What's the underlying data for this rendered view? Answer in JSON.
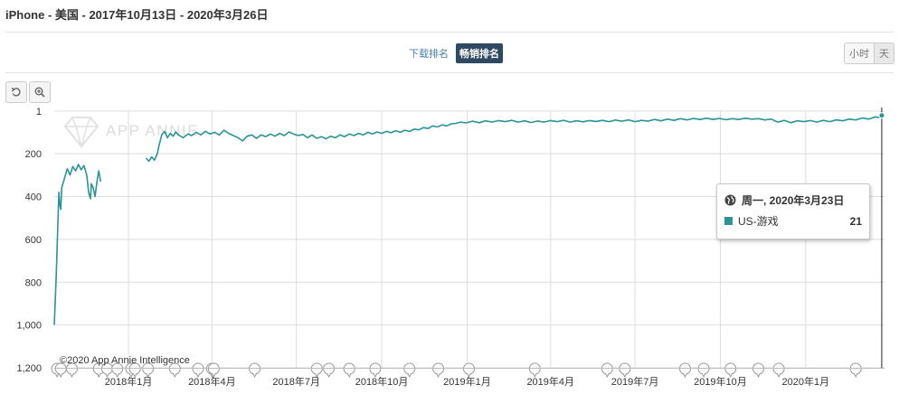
{
  "header": {
    "title": "iPhone - 美国 - 2017年10月13日 - 2020年3月26日"
  },
  "metric_tabs": [
    {
      "label": "下载排名",
      "active": false
    },
    {
      "label": "畅销排名",
      "active": true
    }
  ],
  "granularity": [
    {
      "label": "小时",
      "active": false
    },
    {
      "label": "天",
      "active": true
    }
  ],
  "tools": {
    "reset_icon": "undo-icon",
    "zoom_icon": "zoom-in-icon"
  },
  "watermark": "APP ANNIE",
  "copyright": "©2020 App Annie Intelligence",
  "colors": {
    "series": "#2a9496",
    "grid": "#dddddd",
    "axis_text": "#333333"
  },
  "tooltip": {
    "date": "周一, 2020年3月23日",
    "series": "US-游戏",
    "value": "21",
    "icon": "globe-icon"
  },
  "chart_data": {
    "type": "line",
    "title": "",
    "xlabel": "",
    "ylabel": "",
    "y_reversed": true,
    "ylim": [
      1200,
      1
    ],
    "yticks": [
      1,
      200,
      400,
      600,
      800,
      1000,
      1200
    ],
    "ytick_labels": [
      "1",
      "200",
      "400",
      "600",
      "800",
      "1,000",
      "1,200"
    ],
    "xlim": [
      "2017-10-13",
      "2020-03-26"
    ],
    "xticks": [
      "2018-01-01",
      "2018-04-01",
      "2018-07-01",
      "2018-10-01",
      "2019-01-01",
      "2019-04-01",
      "2019-07-01",
      "2019-10-01",
      "2020-01-01"
    ],
    "xtick_labels": [
      "2018年1月",
      "2018年4月",
      "2018年7月",
      "2018年10月",
      "2019年1月",
      "2019年4月",
      "2019年7月",
      "2019年10月",
      "2020年1月"
    ],
    "grid": true,
    "series": [
      {
        "name": "US-游戏",
        "segments": [
          [
            [
              "2017-10-13",
              1000
            ],
            [
              "2017-10-15",
              780
            ],
            [
              "2017-10-17",
              510
            ],
            [
              "2017-10-18",
              380
            ],
            [
              "2017-10-19",
              440
            ],
            [
              "2017-10-20",
              460
            ],
            [
              "2017-10-21",
              360
            ],
            [
              "2017-10-23",
              330
            ],
            [
              "2017-10-25",
              300
            ],
            [
              "2017-10-27",
              270
            ],
            [
              "2017-10-30",
              300
            ],
            [
              "2017-11-02",
              260
            ],
            [
              "2017-11-05",
              280
            ],
            [
              "2017-11-08",
              250
            ],
            [
              "2017-11-11",
              275
            ],
            [
              "2017-11-14",
              255
            ],
            [
              "2017-11-17",
              300
            ],
            [
              "2017-11-19",
              380
            ],
            [
              "2017-11-21",
              410
            ],
            [
              "2017-11-22",
              340
            ],
            [
              "2017-11-24",
              360
            ],
            [
              "2017-11-26",
              400
            ],
            [
              "2017-11-28",
              330
            ],
            [
              "2017-11-30",
              280
            ],
            [
              "2017-12-02",
              330
            ]
          ],
          [
            [
              "2018-01-20",
              220
            ],
            [
              "2018-01-23",
              235
            ],
            [
              "2018-01-26",
              215
            ],
            [
              "2018-01-29",
              230
            ],
            [
              "2018-02-01",
              200
            ],
            [
              "2018-02-03",
              160
            ],
            [
              "2018-02-06",
              110
            ],
            [
              "2018-02-09",
              95
            ],
            [
              "2018-02-12",
              125
            ],
            [
              "2018-02-15",
              105
            ],
            [
              "2018-02-18",
              118
            ],
            [
              "2018-02-21",
              98
            ],
            [
              "2018-02-24",
              112
            ],
            [
              "2018-03-01",
              125
            ],
            [
              "2018-03-06",
              108
            ],
            [
              "2018-03-10",
              115
            ],
            [
              "2018-03-15",
              100
            ],
            [
              "2018-03-20",
              112
            ],
            [
              "2018-03-25",
              95
            ],
            [
              "2018-03-30",
              108
            ],
            [
              "2018-04-04",
              100
            ],
            [
              "2018-04-09",
              112
            ],
            [
              "2018-04-14",
              90
            ],
            [
              "2018-04-19",
              105
            ],
            [
              "2018-04-24",
              115
            ],
            [
              "2018-04-29",
              125
            ],
            [
              "2018-05-04",
              140
            ],
            [
              "2018-05-09",
              118
            ],
            [
              "2018-05-14",
              112
            ],
            [
              "2018-05-19",
              128
            ],
            [
              "2018-05-24",
              112
            ],
            [
              "2018-05-29",
              120
            ],
            [
              "2018-06-03",
              108
            ],
            [
              "2018-06-08",
              118
            ],
            [
              "2018-06-13",
              105
            ],
            [
              "2018-06-18",
              115
            ],
            [
              "2018-06-23",
              98
            ],
            [
              "2018-06-28",
              108
            ],
            [
              "2018-07-03",
              115
            ],
            [
              "2018-07-08",
              110
            ],
            [
              "2018-07-13",
              125
            ],
            [
              "2018-07-18",
              112
            ],
            [
              "2018-07-23",
              128
            ],
            [
              "2018-07-28",
              120
            ],
            [
              "2018-08-02",
              130
            ],
            [
              "2018-08-07",
              118
            ],
            [
              "2018-08-12",
              125
            ],
            [
              "2018-08-17",
              112
            ],
            [
              "2018-08-22",
              120
            ],
            [
              "2018-08-27",
              108
            ],
            [
              "2018-09-01",
              115
            ],
            [
              "2018-09-06",
              105
            ],
            [
              "2018-09-11",
              112
            ],
            [
              "2018-09-16",
              100
            ],
            [
              "2018-09-21",
              108
            ],
            [
              "2018-09-26",
              98
            ],
            [
              "2018-10-01",
              105
            ],
            [
              "2018-10-06",
              95
            ],
            [
              "2018-10-11",
              102
            ],
            [
              "2018-10-16",
              92
            ],
            [
              "2018-10-21",
              100
            ],
            [
              "2018-10-26",
              90
            ],
            [
              "2018-10-31",
              96
            ],
            [
              "2018-11-05",
              85
            ],
            [
              "2018-11-10",
              88
            ],
            [
              "2018-11-15",
              78
            ],
            [
              "2018-11-20",
              82
            ],
            [
              "2018-11-25",
              70
            ],
            [
              "2018-11-30",
              75
            ],
            [
              "2018-12-05",
              65
            ],
            [
              "2018-12-10",
              70
            ],
            [
              "2018-12-15",
              60
            ],
            [
              "2018-12-20",
              58
            ],
            [
              "2018-12-25",
              52
            ],
            [
              "2018-12-31",
              56
            ],
            [
              "2019-01-07",
              48
            ],
            [
              "2019-01-14",
              55
            ],
            [
              "2019-01-21",
              46
            ],
            [
              "2019-01-28",
              52
            ],
            [
              "2019-02-04",
              45
            ],
            [
              "2019-02-11",
              50
            ],
            [
              "2019-02-18",
              44
            ],
            [
              "2019-02-25",
              52
            ],
            [
              "2019-03-04",
              46
            ],
            [
              "2019-03-11",
              54
            ],
            [
              "2019-03-18",
              47
            ],
            [
              "2019-03-25",
              52
            ],
            [
              "2019-04-01",
              45
            ],
            [
              "2019-04-08",
              50
            ],
            [
              "2019-04-15",
              44
            ],
            [
              "2019-04-22",
              52
            ],
            [
              "2019-04-29",
              46
            ],
            [
              "2019-05-06",
              51
            ],
            [
              "2019-05-13",
              45
            ],
            [
              "2019-05-20",
              49
            ],
            [
              "2019-05-27",
              44
            ],
            [
              "2019-06-03",
              50
            ],
            [
              "2019-06-10",
              43
            ],
            [
              "2019-06-17",
              48
            ],
            [
              "2019-06-24",
              42
            ],
            [
              "2019-07-01",
              50
            ],
            [
              "2019-07-08",
              44
            ],
            [
              "2019-07-15",
              48
            ],
            [
              "2019-07-22",
              40
            ],
            [
              "2019-07-29",
              46
            ],
            [
              "2019-08-05",
              38
            ],
            [
              "2019-08-12",
              44
            ],
            [
              "2019-08-19",
              36
            ],
            [
              "2019-08-26",
              42
            ],
            [
              "2019-09-02",
              35
            ],
            [
              "2019-09-09",
              40
            ],
            [
              "2019-09-16",
              34
            ],
            [
              "2019-09-23",
              40
            ],
            [
              "2019-09-30",
              35
            ],
            [
              "2019-10-07",
              41
            ],
            [
              "2019-10-14",
              36
            ],
            [
              "2019-10-21",
              40
            ],
            [
              "2019-10-28",
              34
            ],
            [
              "2019-11-04",
              38
            ],
            [
              "2019-11-11",
              36
            ],
            [
              "2019-11-18",
              42
            ],
            [
              "2019-11-25",
              38
            ],
            [
              "2019-12-02",
              52
            ],
            [
              "2019-12-09",
              44
            ],
            [
              "2019-12-16",
              55
            ],
            [
              "2019-12-23",
              46
            ],
            [
              "2019-12-30",
              50
            ],
            [
              "2020-01-06",
              45
            ],
            [
              "2020-01-13",
              52
            ],
            [
              "2020-01-20",
              44
            ],
            [
              "2020-01-27",
              50
            ],
            [
              "2020-02-03",
              42
            ],
            [
              "2020-02-10",
              46
            ],
            [
              "2020-02-17",
              38
            ],
            [
              "2020-02-24",
              42
            ],
            [
              "2020-03-02",
              33
            ],
            [
              "2020-03-09",
              38
            ],
            [
              "2020-03-16",
              28
            ],
            [
              "2020-03-20",
              30
            ],
            [
              "2020-03-23",
              21
            ],
            [
              "2020-03-26",
              26
            ]
          ]
        ]
      }
    ],
    "highlight_date": "2020-03-23",
    "event_markers": [
      "2017-10-16",
      "2017-10-20",
      "2017-11-01",
      "2017-11-30",
      "2017-12-09",
      "2017-12-20",
      "2018-01-04",
      "2018-01-08",
      "2018-01-22",
      "2018-02-20",
      "2018-03-17",
      "2018-04-01",
      "2018-04-03",
      "2018-05-17",
      "2018-07-23",
      "2018-08-05",
      "2018-08-27",
      "2018-09-24",
      "2018-10-31",
      "2018-12-01",
      "2019-01-03",
      "2019-03-15",
      "2019-06-01",
      "2019-06-20",
      "2019-08-24",
      "2019-09-13",
      "2019-10-12",
      "2019-11-11",
      "2019-12-03",
      "2020-02-24"
    ]
  }
}
